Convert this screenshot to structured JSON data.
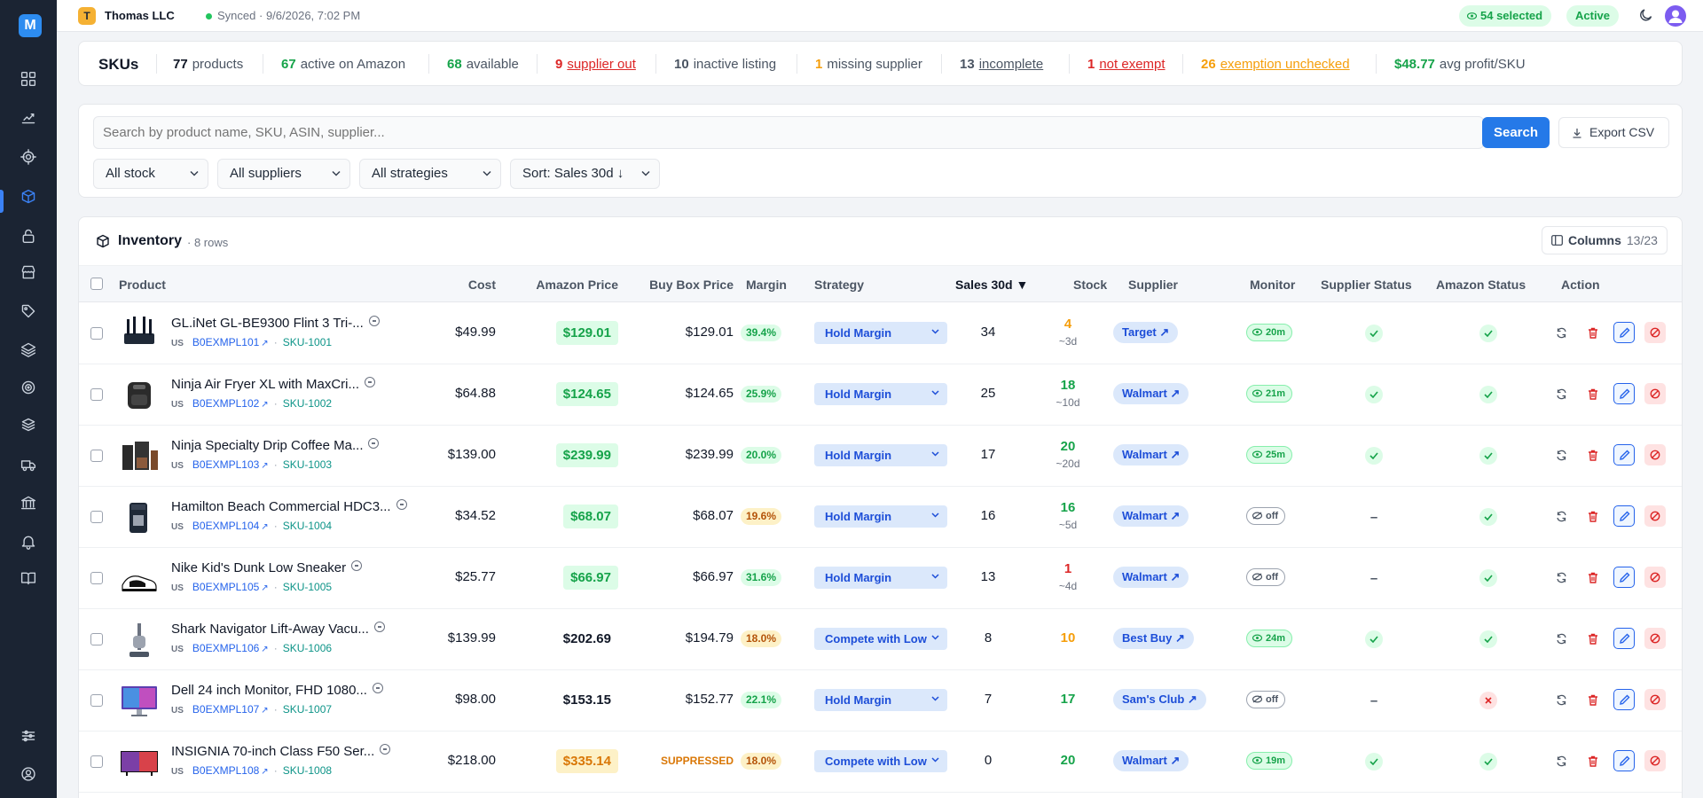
{
  "app": {
    "logo_letter": "M"
  },
  "sidebar": {
    "items": [
      {
        "name": "dashboard-icon"
      },
      {
        "name": "analytics-icon"
      },
      {
        "name": "target-icon"
      },
      {
        "name": "inventory-box-icon",
        "active": true
      },
      {
        "name": "lock-icon"
      },
      {
        "name": "store-icon"
      },
      {
        "name": "tag-icon"
      },
      {
        "name": "layers-icon"
      },
      {
        "name": "circle-target-icon"
      },
      {
        "name": "stack-icon"
      },
      {
        "name": "truck-icon"
      },
      {
        "name": "bank-icon"
      },
      {
        "name": "bell-icon"
      },
      {
        "name": "book-icon"
      },
      {
        "name": "settings-sliders-icon"
      },
      {
        "name": "account-icon"
      }
    ]
  },
  "topbar": {
    "org_initial": "T",
    "org_name": "Thomas LLC",
    "sync_status": "Synced",
    "sync_time": "· 9/6/2026, 7:02 PM",
    "selected": "54 selected",
    "status": "Active"
  },
  "stats": {
    "title": "SKUs",
    "items": [
      {
        "value": "77",
        "label": "products",
        "color": "#111827",
        "underline": false
      },
      {
        "value": "67",
        "label": "active on Amazon",
        "color": "#16a34a",
        "underline": false
      },
      {
        "value": "68",
        "label": "available",
        "color": "#16a34a",
        "underline": false
      },
      {
        "value": "9",
        "label": "supplier out",
        "color": "#dc2626",
        "underline": true
      },
      {
        "value": "10",
        "label": "inactive listing",
        "color": "#4b5563",
        "underline": false
      },
      {
        "value": "1",
        "label": "missing supplier",
        "color": "#f59e0b",
        "underline": false
      },
      {
        "value": "13",
        "label": "incomplete",
        "color": "#4b5563",
        "underline": true
      },
      {
        "value": "1",
        "label": "not exempt",
        "color": "#dc2626",
        "underline": true
      },
      {
        "value": "26",
        "label": "exemption unchecked",
        "color": "#f59e0b",
        "underline": true
      },
      {
        "value": "$48.77",
        "label": "avg profit/SKU",
        "color": "#16a34a",
        "underline": false
      }
    ]
  },
  "filters": {
    "search_placeholder": "Search by product name, SKU, ASIN, supplier...",
    "search_button": "Search",
    "export_button": "Export CSV",
    "stock_filter": "All stock",
    "supplier_filter": "All suppliers",
    "strategy_filter": "All strategies",
    "sort": "Sort: Sales 30d ↓"
  },
  "inventory": {
    "title": "Inventory",
    "row_count": "· 8 rows",
    "columns_label": "Columns",
    "columns_count": "13/23",
    "headers": {
      "product": "Product",
      "cost": "Cost",
      "amazon_price": "Amazon Price",
      "buy_box": "Buy Box Price",
      "margin": "Margin",
      "strategy": "Strategy",
      "sales": "Sales 30d ▼",
      "stock": "Stock",
      "supplier": "Supplier",
      "monitor": "Monitor",
      "supplier_status": "Supplier Status",
      "amazon_status": "Amazon Status",
      "action": "Action"
    },
    "rows": [
      {
        "name": "GL.iNet GL-BE9300 Flint 3 Tri-...",
        "country": "US",
        "asin": "B0EXMPL101",
        "sku": "SKU-1001",
        "cost": "$49.99",
        "amazon_price": "$129.01",
        "amazon_style": "green",
        "buy_box": "$129.01",
        "buy_box_suppressed": false,
        "margin": "39.4%",
        "margin_style": "green",
        "strategy": "Hold Margin",
        "sales": "34",
        "stock": "4",
        "stock_color": "#f59e0b",
        "stock_sub": "~3d",
        "supplier": "Target",
        "monitor": "20m",
        "monitor_on": true,
        "supplier_status": "ok",
        "amazon_status": "ok",
        "thumb": "router"
      },
      {
        "name": "Ninja Air Fryer XL with MaxCri...",
        "country": "US",
        "asin": "B0EXMPL102",
        "sku": "SKU-1002",
        "cost": "$64.88",
        "amazon_price": "$124.65",
        "amazon_style": "green",
        "buy_box": "$124.65",
        "buy_box_suppressed": false,
        "margin": "25.9%",
        "margin_style": "green",
        "strategy": "Hold Margin",
        "sales": "25",
        "stock": "18",
        "stock_color": "#16a34a",
        "stock_sub": "~10d",
        "supplier": "Walmart",
        "monitor": "21m",
        "monitor_on": true,
        "supplier_status": "ok",
        "amazon_status": "ok",
        "thumb": "airfryer"
      },
      {
        "name": "Ninja Specialty Drip Coffee Ma...",
        "country": "US",
        "asin": "B0EXMPL103",
        "sku": "SKU-1003",
        "cost": "$139.00",
        "amazon_price": "$239.99",
        "amazon_style": "green",
        "buy_box": "$239.99",
        "buy_box_suppressed": false,
        "margin": "20.0%",
        "margin_style": "green",
        "strategy": "Hold Margin",
        "sales": "17",
        "stock": "20",
        "stock_color": "#16a34a",
        "stock_sub": "~20d",
        "supplier": "Walmart",
        "monitor": "25m",
        "monitor_on": true,
        "supplier_status": "ok",
        "amazon_status": "ok",
        "thumb": "coffee"
      },
      {
        "name": "Hamilton Beach Commercial HDC3...",
        "country": "US",
        "asin": "B0EXMPL104",
        "sku": "SKU-1004",
        "cost": "$34.52",
        "amazon_price": "$68.07",
        "amazon_style": "green",
        "buy_box": "$68.07",
        "buy_box_suppressed": false,
        "margin": "19.6%",
        "margin_style": "yellow",
        "strategy": "Hold Margin",
        "sales": "16",
        "stock": "16",
        "stock_color": "#16a34a",
        "stock_sub": "~5d",
        "supplier": "Walmart",
        "monitor": "off",
        "monitor_on": false,
        "supplier_status": "dash",
        "amazon_status": "ok",
        "thumb": "brewer"
      },
      {
        "name": "Nike Kid's Dunk Low Sneaker",
        "country": "US",
        "asin": "B0EXMPL105",
        "sku": "SKU-1005",
        "cost": "$25.77",
        "amazon_price": "$66.97",
        "amazon_style": "green",
        "buy_box": "$66.97",
        "buy_box_suppressed": false,
        "margin": "31.6%",
        "margin_style": "green",
        "strategy": "Hold Margin",
        "sales": "13",
        "stock": "1",
        "stock_color": "#dc2626",
        "stock_sub": "~4d",
        "supplier": "Walmart",
        "monitor": "off",
        "monitor_on": false,
        "supplier_status": "dash",
        "amazon_status": "ok",
        "thumb": "sneaker"
      },
      {
        "name": "Shark Navigator Lift-Away Vacu...",
        "country": "US",
        "asin": "B0EXMPL106",
        "sku": "SKU-1006",
        "cost": "$139.99",
        "amazon_price": "$202.69",
        "amazon_style": "plain",
        "buy_box": "$194.79",
        "buy_box_suppressed": false,
        "margin": "18.0%",
        "margin_style": "yellow",
        "strategy": "Compete with Low",
        "sales": "8",
        "stock": "10",
        "stock_color": "#f59e0b",
        "stock_sub": "",
        "supplier": "Best Buy",
        "monitor": "24m",
        "monitor_on": true,
        "supplier_status": "ok",
        "amazon_status": "ok",
        "thumb": "vacuum"
      },
      {
        "name": "Dell 24 inch Monitor, FHD 1080...",
        "country": "US",
        "asin": "B0EXMPL107",
        "sku": "SKU-1007",
        "cost": "$98.00",
        "amazon_price": "$153.15",
        "amazon_style": "plain",
        "buy_box": "$152.77",
        "buy_box_suppressed": false,
        "margin": "22.1%",
        "margin_style": "green",
        "strategy": "Hold Margin",
        "sales": "7",
        "stock": "17",
        "stock_color": "#16a34a",
        "stock_sub": "",
        "supplier": "Sam's Club",
        "monitor": "off",
        "monitor_on": false,
        "supplier_status": "dash",
        "amazon_status": "bad",
        "thumb": "monitor"
      },
      {
        "name": "INSIGNIA 70-inch Class F50 Ser...",
        "country": "US",
        "asin": "B0EXMPL108",
        "sku": "SKU-1008",
        "cost": "$218.00",
        "amazon_price": "$335.14",
        "amazon_style": "orange",
        "buy_box": "SUPPRESSED",
        "buy_box_suppressed": true,
        "margin": "18.0%",
        "margin_style": "yellow",
        "strategy": "Compete with Low",
        "sales": "0",
        "stock": "20",
        "stock_color": "#16a34a",
        "stock_sub": "",
        "supplier": "Walmart",
        "monitor": "19m",
        "monitor_on": true,
        "supplier_status": "ok",
        "amazon_status": "ok",
        "thumb": "tv"
      }
    ]
  }
}
